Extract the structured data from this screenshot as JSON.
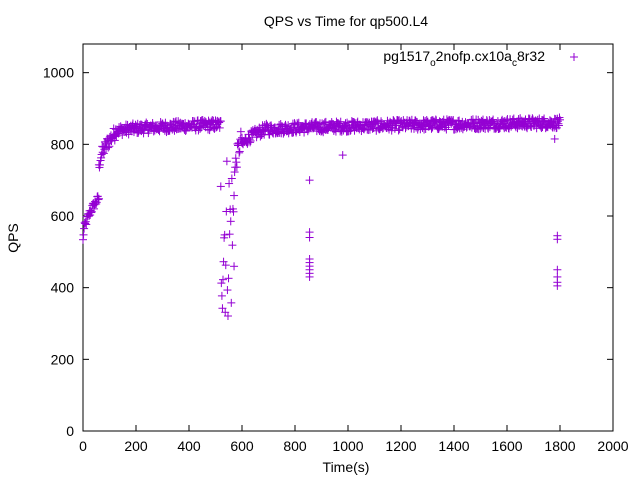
{
  "chart_data": {
    "type": "scatter",
    "title": "QPS vs Time for qp500.L4",
    "xlabel": "Time(s)",
    "ylabel": "QPS",
    "xlim": [
      0,
      2000
    ],
    "ylim": [
      0,
      1080
    ],
    "xticks": [
      0,
      200,
      400,
      600,
      800,
      1000,
      1200,
      1400,
      1600,
      1800,
      2000
    ],
    "yticks": [
      0,
      200,
      400,
      600,
      800,
      1000
    ],
    "grid": false,
    "legend_position": "top-right",
    "marker_color": "#9400D3",
    "series": [
      {
        "name": "pg1517_o2nofp.cx10a_c8r32",
        "marker": "+",
        "segments": [
          {
            "x_start": 0,
            "x_end": 60,
            "y_start": 530,
            "y_end": 650,
            "spread": 25
          },
          {
            "x_start": 60,
            "x_end": 120,
            "y_start": 730,
            "y_end": 830,
            "spread": 40
          },
          {
            "x_start": 120,
            "x_end": 520,
            "y_start": 835,
            "y_end": 855,
            "spread": 30
          },
          {
            "x_start": 520,
            "x_end": 570,
            "y_start": 300,
            "y_end": 800,
            "spread": 0,
            "scatter_range": [
              300,
              800
            ]
          },
          {
            "x_start": 570,
            "x_end": 600,
            "y_start": 680,
            "y_end": 820,
            "spread": 60
          },
          {
            "x_start": 600,
            "x_end": 700,
            "y_start": 790,
            "y_end": 845,
            "spread": 30
          },
          {
            "x_start": 700,
            "x_end": 1800,
            "y_start": 840,
            "y_end": 860,
            "spread": 30
          }
        ],
        "outliers": [
          {
            "x": 855,
            "y": 700
          },
          {
            "x": 855,
            "y": 555
          },
          {
            "x": 855,
            "y": 540
          },
          {
            "x": 855,
            "y": 480
          },
          {
            "x": 855,
            "y": 470
          },
          {
            "x": 855,
            "y": 460
          },
          {
            "x": 855,
            "y": 450
          },
          {
            "x": 855,
            "y": 440
          },
          {
            "x": 855,
            "y": 430
          },
          {
            "x": 980,
            "y": 770
          },
          {
            "x": 1790,
            "y": 545
          },
          {
            "x": 1790,
            "y": 535
          },
          {
            "x": 1790,
            "y": 450
          },
          {
            "x": 1790,
            "y": 430
          },
          {
            "x": 1790,
            "y": 415
          },
          {
            "x": 1790,
            "y": 405
          },
          {
            "x": 1780,
            "y": 815
          }
        ]
      }
    ]
  },
  "legend": {
    "label_main": "pg1517",
    "label_sub1": "o",
    "label_mid": "2nofp.cx10a",
    "label_sub2": "c",
    "label_end": "8r32"
  }
}
